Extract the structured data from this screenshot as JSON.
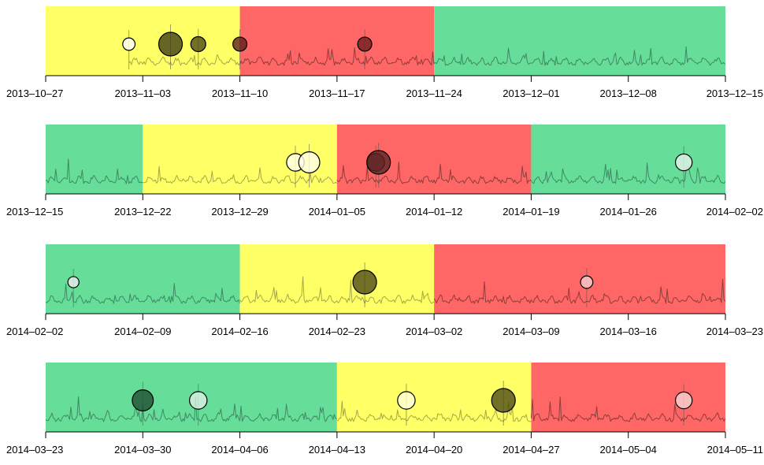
{
  "colors": {
    "yellow": "#ffff66",
    "red": "#ff6666",
    "green": "#66dd99",
    "signal_yellow": "#a8a84a",
    "signal_red": "#8e3e3e",
    "signal_green": "#3f8a64",
    "axis": "#000000"
  },
  "chart_data": [
    {
      "type": "line",
      "x_start": "2013-10-27",
      "x_end": "2013-12-15",
      "tick_labels": [
        "2013-10-27",
        "2013-11-03",
        "2013-11-10",
        "2013-11-17",
        "2013-11-24",
        "2013-12-01",
        "2013-12-08",
        "2013-12-15"
      ],
      "signal_start": "2013-11-02",
      "regions": [
        {
          "start": "2013-10-27",
          "end": "2013-11-10",
          "color": "yellow"
        },
        {
          "start": "2013-11-10",
          "end": "2013-11-24",
          "color": "red"
        },
        {
          "start": "2013-11-24",
          "end": "2013-12-15",
          "color": "green"
        }
      ],
      "events": [
        {
          "date": "2013-11-02",
          "size": 0.35,
          "shade": "#ffffff"
        },
        {
          "date": "2013-11-05",
          "size": 1.0,
          "shade": "#3b3a12"
        },
        {
          "date": "2013-11-07",
          "size": 0.5,
          "shade": "#4a4614"
        },
        {
          "date": "2013-11-10",
          "size": 0.45,
          "shade": "#5a1c1c"
        },
        {
          "date": "2013-11-19",
          "size": 0.45,
          "shade": "#6a1e1e"
        }
      ]
    },
    {
      "type": "line",
      "x_start": "2013-12-15",
      "x_end": "2014-02-02",
      "tick_labels": [
        "2013-12-15",
        "2013-12-22",
        "2013-12-29",
        "2014-01-05",
        "2014-01-12",
        "2014-01-19",
        "2014-01-26",
        "2014-02-02"
      ],
      "signal_start": "2013-12-15",
      "regions": [
        {
          "start": "2013-12-15",
          "end": "2013-12-22",
          "color": "green"
        },
        {
          "start": "2013-12-22",
          "end": "2014-01-05",
          "color": "yellow"
        },
        {
          "start": "2014-01-05",
          "end": "2014-01-19",
          "color": "red"
        },
        {
          "start": "2014-01-19",
          "end": "2014-02-02",
          "color": "green"
        }
      ],
      "events": [
        {
          "date": "2014-01-02",
          "size": 0.65,
          "shade": "#ffffee"
        },
        {
          "date": "2014-01-03",
          "size": 0.85,
          "shade": "#ffffee"
        },
        {
          "date": "2014-01-07.8",
          "size": 0.65,
          "shade": "#7a3a3a"
        },
        {
          "date": "2014-01-08",
          "size": 1.0,
          "shade": "#5a2424"
        },
        {
          "date": "2014-01-30",
          "size": 0.6,
          "shade": "#e6f2ea"
        }
      ]
    },
    {
      "type": "line",
      "x_start": "2014-02-02",
      "x_end": "2014-03-23",
      "tick_labels": [
        "2014-02-02",
        "2014-02-09",
        "2014-02-16",
        "2014-02-23",
        "2014-03-02",
        "2014-03-09",
        "2014-03-16",
        "2014-03-23"
      ],
      "signal_start": "2014-02-02",
      "regions": [
        {
          "start": "2014-02-02",
          "end": "2014-02-16",
          "color": "green"
        },
        {
          "start": "2014-02-16",
          "end": "2014-03-02",
          "color": "yellow"
        },
        {
          "start": "2014-03-02",
          "end": "2014-03-23",
          "color": "red"
        }
      ],
      "events": [
        {
          "date": "2014-02-04",
          "size": 0.28,
          "shade": "#eeeeee"
        },
        {
          "date": "2014-02-25",
          "size": 1.0,
          "shade": "#4a4614"
        },
        {
          "date": "2014-03-13",
          "size": 0.35,
          "shade": "#f4d0d0"
        }
      ]
    },
    {
      "type": "line",
      "x_start": "2014-03-23",
      "x_end": "2014-05-11",
      "tick_labels": [
        "2014-03-23",
        "2014-03-30",
        "2014-04-06",
        "2014-04-13",
        "2014-04-20",
        "2014-04-27",
        "2014-05-04",
        "2014-05-11"
      ],
      "signal_start": "2014-03-23",
      "regions": [
        {
          "start": "2014-03-23",
          "end": "2014-04-13",
          "color": "green"
        },
        {
          "start": "2014-04-13",
          "end": "2014-04-27",
          "color": "yellow"
        },
        {
          "start": "2014-04-27",
          "end": "2014-05-11",
          "color": "red"
        }
      ],
      "events": [
        {
          "date": "2014-03-30",
          "size": 0.85,
          "shade": "#1f4a30"
        },
        {
          "date": "2014-04-03",
          "size": 0.65,
          "shade": "#dff0e4"
        },
        {
          "date": "2014-04-18",
          "size": 0.65,
          "shade": "#ffffdd"
        },
        {
          "date": "2014-04-25",
          "size": 1.0,
          "shade": "#4a4614"
        },
        {
          "date": "2014-05-08",
          "size": 0.6,
          "shade": "#f7d6d6"
        }
      ]
    }
  ]
}
